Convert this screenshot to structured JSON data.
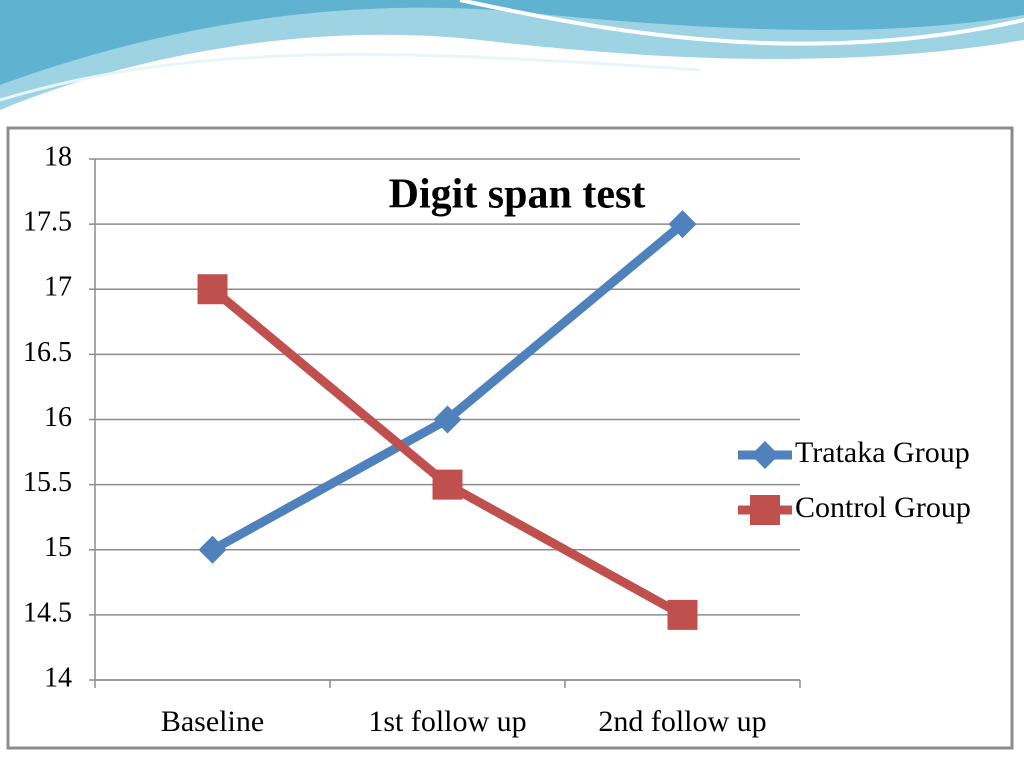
{
  "chart_data": {
    "type": "line",
    "title": "Digit span test",
    "categories": [
      "Baseline",
      "1st follow up",
      "2nd follow up"
    ],
    "series": [
      {
        "name": "Trataka Group",
        "color": "#4f81bd",
        "marker": "diamond",
        "values": [
          15,
          16,
          17.5
        ]
      },
      {
        "name": "Control Group",
        "color": "#c0504d",
        "marker": "square",
        "values": [
          17,
          15.5,
          14.5
        ]
      }
    ],
    "ylim": [
      14,
      18
    ],
    "yticks": [
      14,
      14.5,
      15,
      15.5,
      16,
      16.5,
      17,
      17.5,
      18
    ],
    "grid": true,
    "legend": "right"
  }
}
